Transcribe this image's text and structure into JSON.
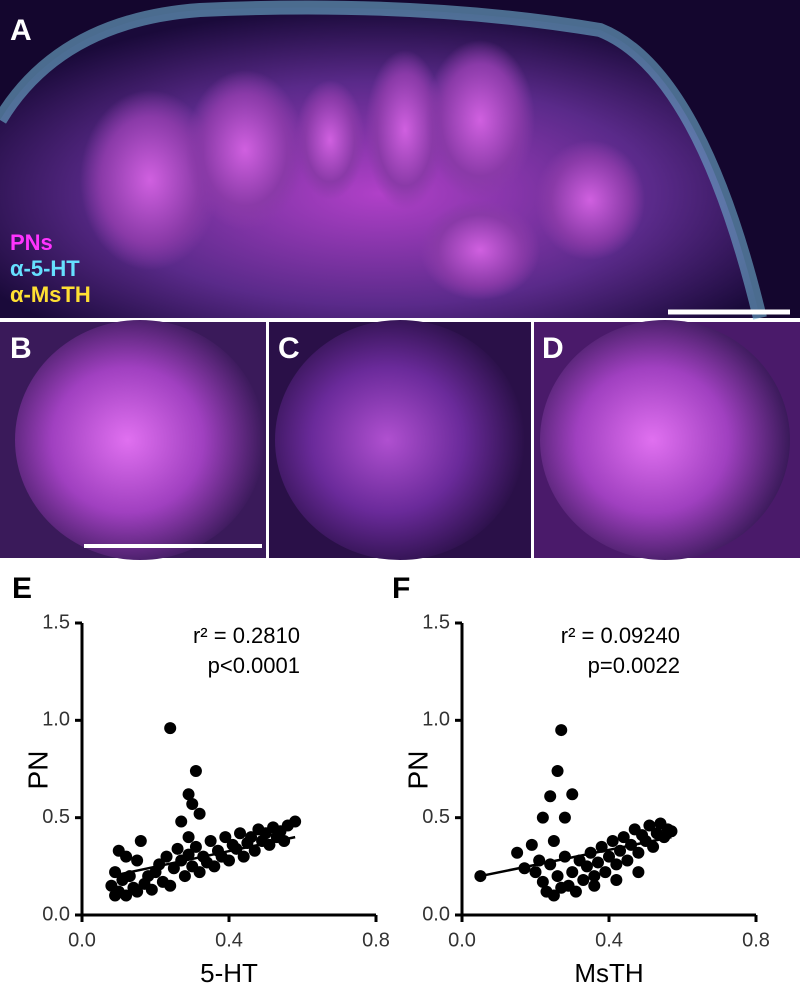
{
  "figure": {
    "panels": [
      {
        "label": "A"
      },
      {
        "label": "B"
      },
      {
        "label": "C"
      },
      {
        "label": "D"
      }
    ],
    "legend": [
      {
        "text": "PNs",
        "color": "#ff33ff"
      },
      {
        "text": "α-5-HT",
        "color": "#66e0ff"
      },
      {
        "text": "α-MsTH",
        "color": "#ffe033"
      }
    ]
  },
  "chart_data": [
    {
      "type": "scatter",
      "title": "E",
      "xlabel": "5-HT",
      "ylabel": "PN",
      "color": "#000000",
      "annotations": [
        "r² = 0.2810",
        "p<0.0001"
      ],
      "xlim": [
        0,
        0.8
      ],
      "xticks": [
        {
          "value": 0,
          "label": "0.0"
        },
        0.4,
        0.8
      ],
      "ylim": [
        0,
        1.5
      ],
      "yticks": [
        {
          "value": 0,
          "label": "0.0"
        },
        0.5,
        {
          "value": 1,
          "label": "1.0"
        },
        1.5
      ],
      "x": [
        0.08,
        0.09,
        0.09,
        0.1,
        0.1,
        0.11,
        0.12,
        0.12,
        0.13,
        0.14,
        0.15,
        0.15,
        0.16,
        0.17,
        0.18,
        0.19,
        0.2,
        0.21,
        0.22,
        0.23,
        0.24,
        0.25,
        0.26,
        0.27,
        0.28,
        0.29,
        0.29,
        0.3,
        0.31,
        0.32,
        0.33,
        0.34,
        0.35,
        0.36,
        0.37,
        0.38,
        0.39,
        0.4,
        0.41,
        0.42,
        0.43,
        0.44,
        0.45,
        0.46,
        0.47,
        0.48,
        0.49,
        0.5,
        0.51,
        0.52,
        0.53,
        0.54,
        0.55,
        0.56,
        0.58,
        0.24,
        0.31,
        0.29,
        0.3,
        0.32,
        0.27
      ],
      "values": [
        0.15,
        0.1,
        0.22,
        0.33,
        0.12,
        0.18,
        0.3,
        0.1,
        0.2,
        0.14,
        0.28,
        0.12,
        0.38,
        0.16,
        0.2,
        0.13,
        0.22,
        0.26,
        0.17,
        0.3,
        0.15,
        0.24,
        0.34,
        0.28,
        0.2,
        0.31,
        0.4,
        0.25,
        0.35,
        0.22,
        0.3,
        0.27,
        0.38,
        0.25,
        0.33,
        0.3,
        0.4,
        0.28,
        0.36,
        0.34,
        0.42,
        0.3,
        0.37,
        0.4,
        0.33,
        0.44,
        0.38,
        0.42,
        0.36,
        0.45,
        0.4,
        0.43,
        0.38,
        0.46,
        0.48,
        0.96,
        0.74,
        0.62,
        0.57,
        0.52,
        0.48
      ],
      "fit": {
        "x": [
          0.08,
          0.58
        ],
        "values": [
          0.2,
          0.4
        ]
      }
    },
    {
      "type": "scatter",
      "title": "F",
      "xlabel": "MsTH",
      "ylabel": "PN",
      "color": "#000000",
      "annotations": [
        "r² = 0.09240",
        "p=0.0022"
      ],
      "xlim": [
        0,
        0.8
      ],
      "xticks": [
        {
          "value": 0,
          "label": "0.0"
        },
        0.4,
        0.8
      ],
      "ylim": [
        0,
        1.5
      ],
      "yticks": [
        {
          "value": 0,
          "label": "0.0"
        },
        0.5,
        {
          "value": 1,
          "label": "1.0"
        },
        1.5
      ],
      "x": [
        0.05,
        0.15,
        0.17,
        0.19,
        0.2,
        0.21,
        0.22,
        0.23,
        0.24,
        0.25,
        0.25,
        0.26,
        0.27,
        0.28,
        0.29,
        0.3,
        0.31,
        0.32,
        0.33,
        0.34,
        0.35,
        0.36,
        0.37,
        0.38,
        0.39,
        0.4,
        0.41,
        0.42,
        0.43,
        0.44,
        0.45,
        0.46,
        0.47,
        0.48,
        0.49,
        0.5,
        0.51,
        0.52,
        0.53,
        0.54,
        0.55,
        0.56,
        0.57,
        0.36,
        0.42,
        0.48,
        0.27,
        0.26,
        0.24,
        0.3,
        0.22,
        0.28
      ],
      "values": [
        0.2,
        0.32,
        0.24,
        0.36,
        0.22,
        0.28,
        0.17,
        0.12,
        0.26,
        0.38,
        0.1,
        0.2,
        0.14,
        0.3,
        0.15,
        0.22,
        0.12,
        0.28,
        0.18,
        0.25,
        0.32,
        0.2,
        0.27,
        0.35,
        0.22,
        0.3,
        0.38,
        0.26,
        0.33,
        0.4,
        0.28,
        0.36,
        0.44,
        0.32,
        0.41,
        0.38,
        0.46,
        0.35,
        0.42,
        0.47,
        0.4,
        0.44,
        0.43,
        0.15,
        0.18,
        0.22,
        0.95,
        0.74,
        0.61,
        0.62,
        0.5,
        0.5
      ],
      "fit": {
        "x": [
          0.05,
          0.57
        ],
        "values": [
          0.2,
          0.4
        ]
      }
    }
  ]
}
